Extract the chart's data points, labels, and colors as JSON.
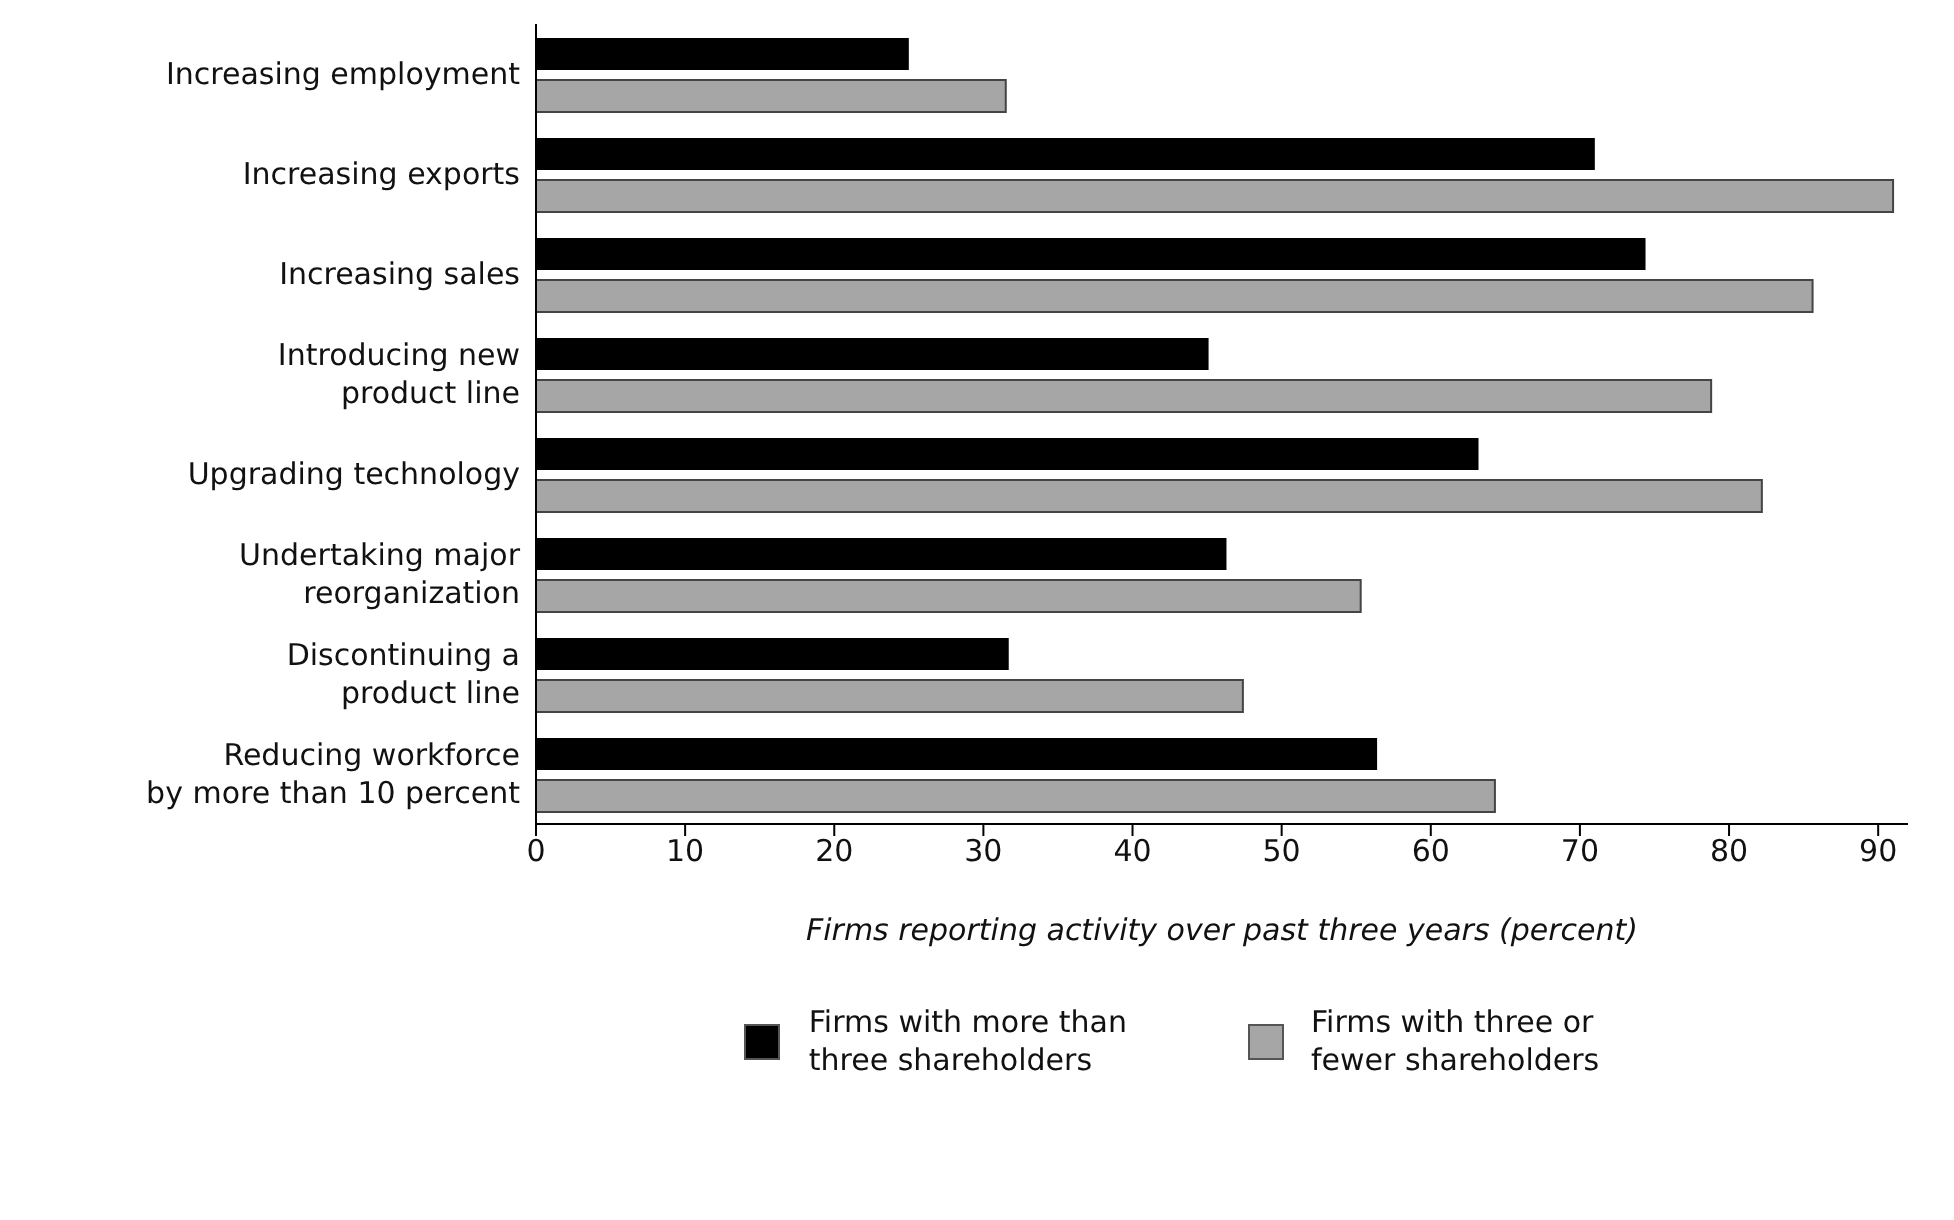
{
  "chart_data": {
    "type": "bar",
    "orientation": "horizontal",
    "xlabel": "Firms reporting activity over past three years (percent)",
    "categories": [
      "Increasing employment",
      "Increasing exports",
      "Increasing sales",
      "Introducing new\nproduct line",
      "Upgrading technology",
      "Undertaking major\nreorganization",
      "Discontinuing a\nproduct line",
      "Reducing workforce\nby more than 10 percent"
    ],
    "series": [
      {
        "name": "Firms with more than\nthree shareholders",
        "color": "#000000",
        "values": [
          25,
          71,
          74.4,
          45.1,
          63.2,
          46.3,
          31.7,
          56.4
        ]
      },
      {
        "name": "Firms with three or\nfewer shareholders",
        "color": "#a6a6a6",
        "values": [
          31.5,
          91,
          85.6,
          78.8,
          82.2,
          55.3,
          47.4,
          64.3
        ]
      }
    ],
    "xlim": [
      0,
      92
    ],
    "xticks": [
      0,
      10,
      20,
      30,
      40,
      50,
      60,
      70,
      80,
      90
    ],
    "legend": "bottom"
  }
}
